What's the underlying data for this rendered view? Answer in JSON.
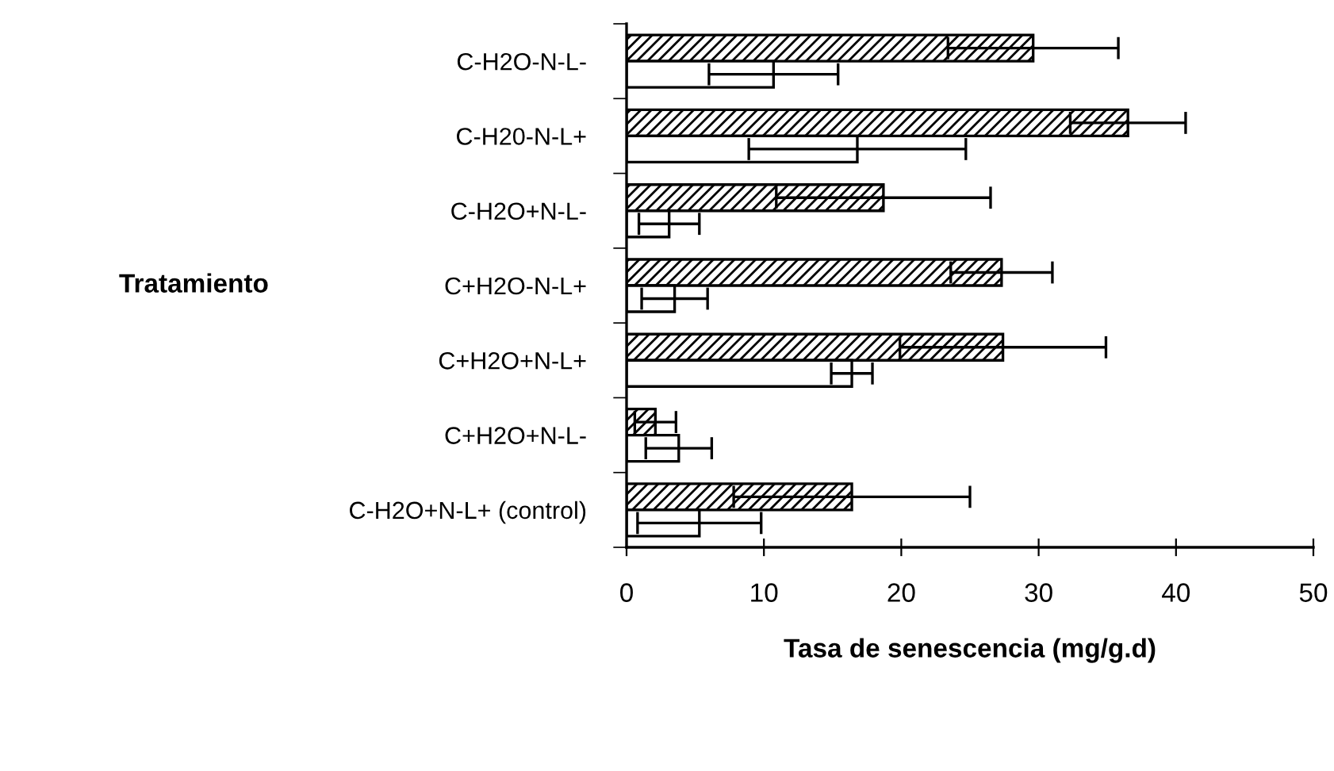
{
  "chart_data": {
    "type": "bar",
    "orientation": "horizontal",
    "categories": [
      "C-H2O-N-L-",
      "C-H20-N-L+",
      "C-H2O+N-L-",
      "C+H2O-N-L+",
      "C+H2O+N-L+",
      "C+H2O+N-L-",
      "C-H2O+N-L+ (control)"
    ],
    "series": [
      {
        "color": "#000000",
        "values": [
          29.6,
          36.5,
          18.7,
          27.3,
          27.4,
          2.1,
          16.4
        ],
        "errors": [
          6.2,
          4.2,
          7.8,
          3.7,
          7.5,
          1.5,
          8.6
        ]
      },
      {
        "color": "#ffffff",
        "values": [
          10.7,
          16.8,
          3.1,
          3.5,
          16.4,
          3.8,
          5.3
        ],
        "errors": [
          4.7,
          7.9,
          2.2,
          2.4,
          1.5,
          2.4,
          4.5
        ]
      }
    ],
    "xlabel": "Tasa de senescencia (mg/g.d)",
    "ylabel": "Tratamiento",
    "xlim": [
      0,
      50
    ],
    "xticks": [
      0,
      10,
      20,
      30,
      40,
      50
    ],
    "grid": false,
    "legend": false
  }
}
